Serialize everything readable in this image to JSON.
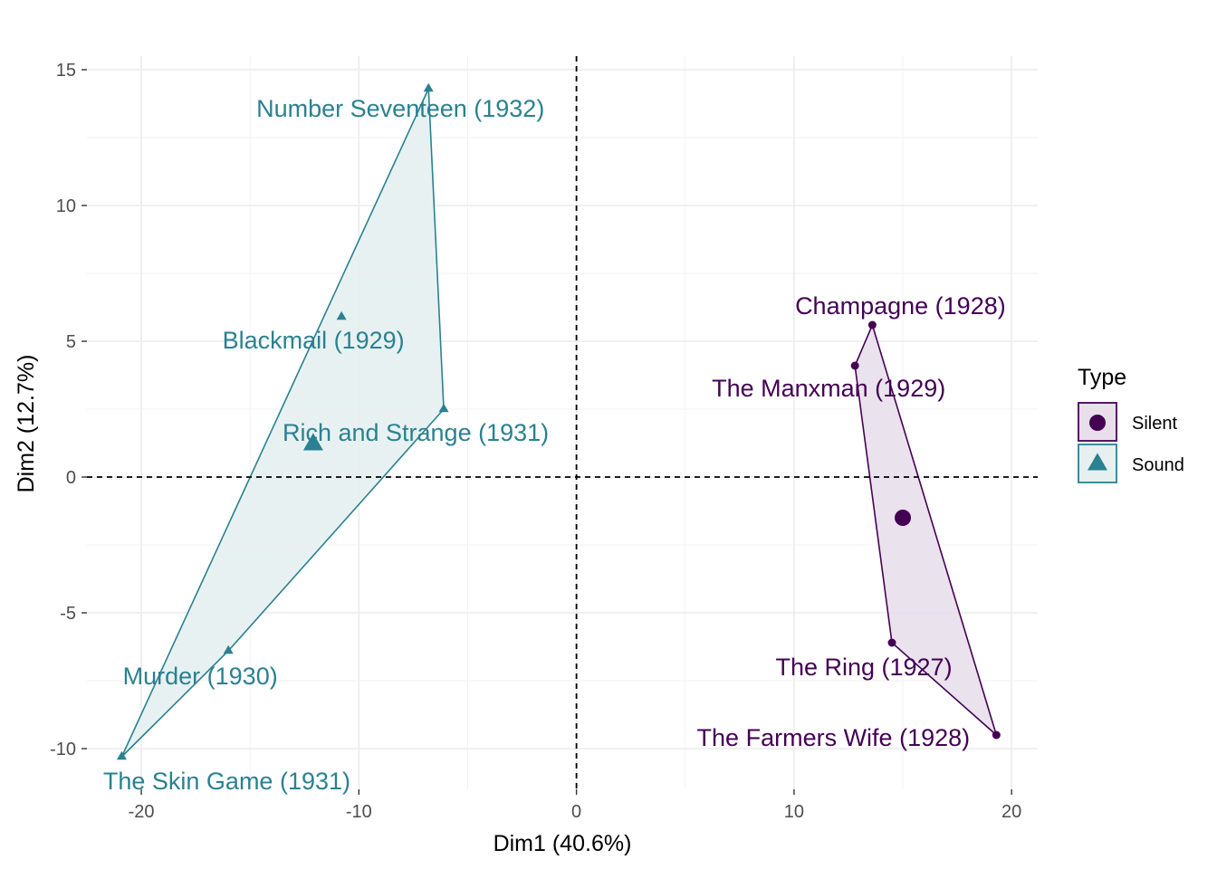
{
  "chart_data": {
    "type": "scatter",
    "xlabel": "Dim1 (40.6%)",
    "ylabel": "Dim2 (12.7%)",
    "xlim": [
      -22.5,
      21.2
    ],
    "ylim": [
      -11.5,
      15.5
    ],
    "xticks": [
      -20,
      -10,
      0,
      10,
      20
    ],
    "yticks": [
      -10,
      -5,
      0,
      5,
      10,
      15
    ],
    "xtick_labels": [
      "-20",
      "-10",
      "0",
      "10",
      "20"
    ],
    "ytick_labels": [
      "-10",
      "-5",
      "0",
      "5",
      "10",
      "15"
    ],
    "grid": true,
    "reference_lines": {
      "x": 0,
      "y": 0,
      "style": "dashed"
    },
    "legend": {
      "title": "Type",
      "placement": "right",
      "entries": [
        {
          "label": "Silent",
          "shape": "circle",
          "color": "#440154"
        },
        {
          "label": "Sound",
          "shape": "triangle",
          "color": "#2a8190"
        }
      ]
    },
    "series": [
      {
        "name": "Silent",
        "color": "#440154",
        "fill": "#e8dfeb",
        "shape": "circle",
        "centroid": {
          "x": 15.0,
          "y": -1.5
        },
        "hull": [
          "The Farmers Wife (1928)",
          "Champagne (1928)",
          "The Manxman (1929)",
          "The Ring (1927)"
        ],
        "points": [
          {
            "label": "Champagne (1928)",
            "x": 13.6,
            "y": 5.6
          },
          {
            "label": "The Manxman (1929)",
            "x": 12.8,
            "y": 4.1
          },
          {
            "label": "The Ring (1927)",
            "x": 14.5,
            "y": -6.1
          },
          {
            "label": "The Farmers Wife (1928)",
            "x": 19.3,
            "y": -9.5
          }
        ]
      },
      {
        "name": "Sound",
        "color": "#2a8190",
        "fill": "#e6f0f1",
        "shape": "triangle",
        "centroid": {
          "x": -12.1,
          "y": 1.2
        },
        "hull": [
          "Number Seventeen (1932)",
          "Rich and Strange (1931)",
          "Murder (1930)",
          "The Skin Game (1931)"
        ],
        "points": [
          {
            "label": "Number Seventeen (1932)",
            "x": -6.8,
            "y": 14.3
          },
          {
            "label": "Blackmail (1929)",
            "x": -10.8,
            "y": 5.9
          },
          {
            "label": "Rich and Strange (1931)",
            "x": -6.1,
            "y": 2.5
          },
          {
            "label": "Murder (1930)",
            "x": -16.0,
            "y": -6.4
          },
          {
            "label": "The Skin Game (1931)",
            "x": -20.9,
            "y": -10.3
          }
        ]
      }
    ]
  }
}
